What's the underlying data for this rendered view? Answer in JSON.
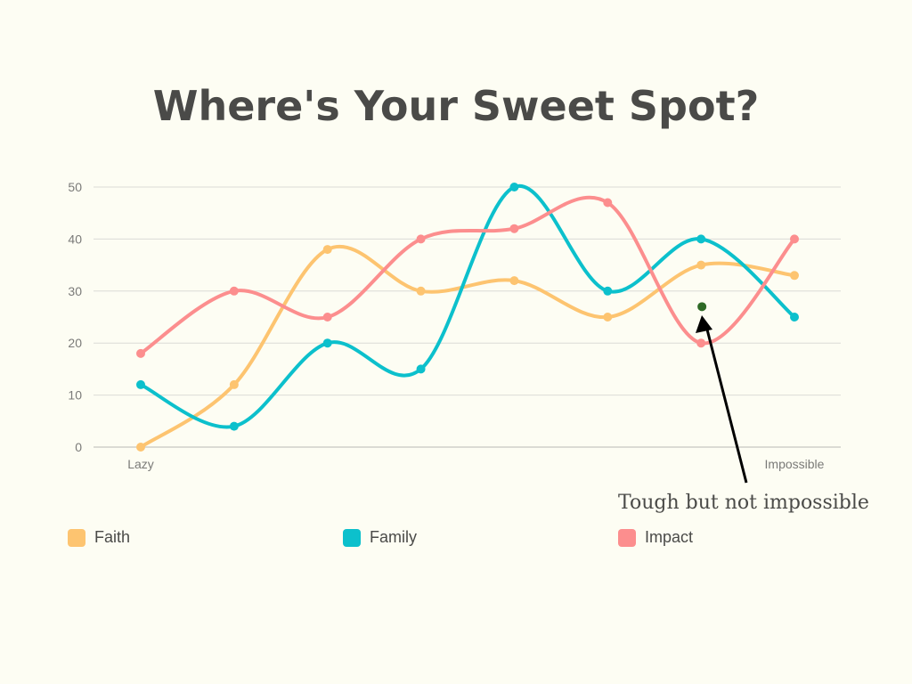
{
  "chart_data": {
    "type": "line",
    "title": "Where's Your Sweet Spot?",
    "xlabel": "",
    "ylabel": "",
    "ylim": [
      0,
      50
    ],
    "yticks": [
      0,
      10,
      20,
      30,
      40,
      50
    ],
    "categories": [
      "Lazy",
      "",
      "",
      "",
      "",
      "",
      "",
      "Impossible"
    ],
    "grid": true,
    "legend_position": "bottom",
    "series": [
      {
        "name": "Faith",
        "color": "#fdc470",
        "values": [
          0,
          12,
          38,
          30,
          32,
          25,
          35,
          33
        ]
      },
      {
        "name": "Family",
        "color": "#0cc0cc",
        "values": [
          12,
          4,
          20,
          15,
          50,
          30,
          40,
          25
        ]
      },
      {
        "name": "Impact",
        "color": "#fc8e8e",
        "values": [
          18,
          30,
          25,
          40,
          42,
          47,
          20,
          40
        ]
      }
    ],
    "annotation": {
      "text": "Tough but not impossible",
      "point": {
        "x_index": 6,
        "y": 27
      },
      "point_color": "#2f6a26"
    }
  }
}
